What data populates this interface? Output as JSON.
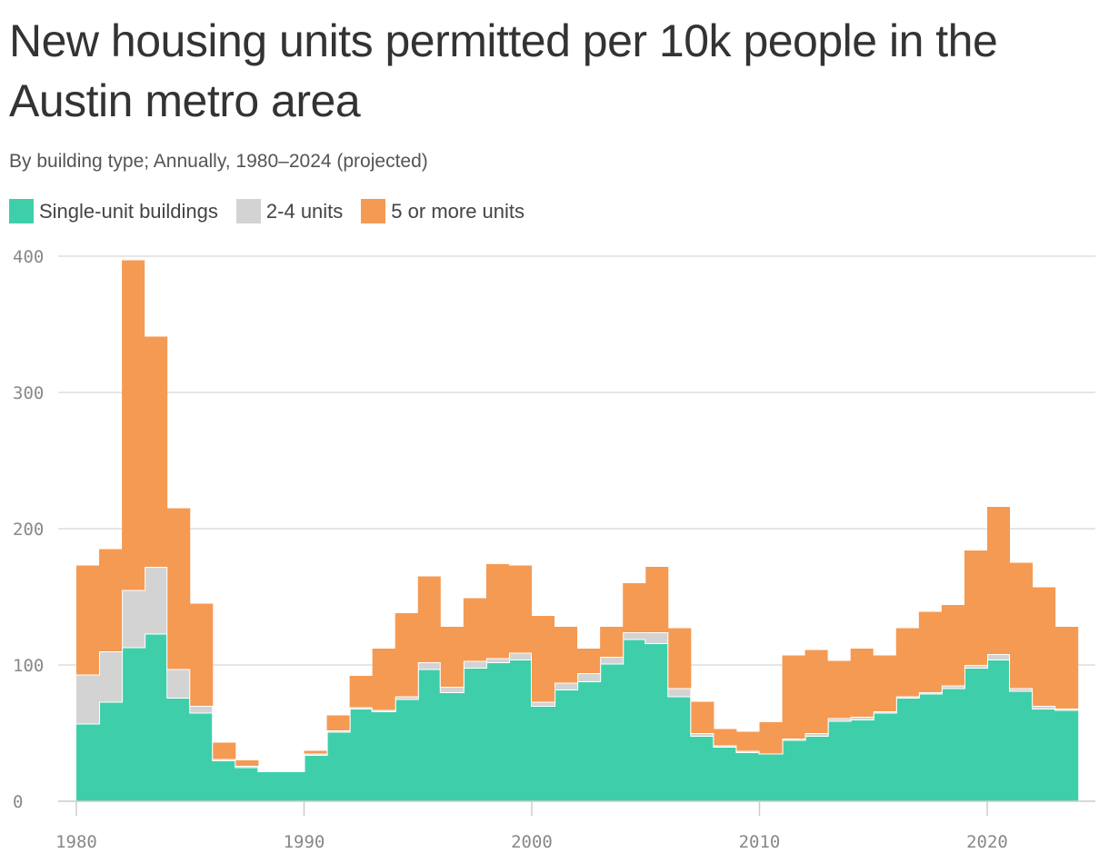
{
  "title": "New housing units permitted per 10k people in the Austin metro area",
  "subtitle": "By building type; Annually, 1980–2024 (projected)",
  "colors": {
    "single": "#3ecfaa",
    "two_four": "#d3d3d3",
    "five_plus": "#f59a53",
    "grid": "#dddddd",
    "axis": "#cccccc",
    "separator": "#ffffff"
  },
  "chart_data": {
    "type": "area",
    "stacked": true,
    "step": true,
    "title": "New housing units permitted per 10k people in the Austin metro area",
    "subtitle": "By building type; Annually, 1980–2024 (projected)",
    "xlabel": "",
    "ylabel": "",
    "ylim": [
      0,
      400
    ],
    "yticks": [
      0,
      100,
      200,
      300,
      400
    ],
    "xticks": [
      1980,
      1990,
      2000,
      2010,
      2020
    ],
    "grid": true,
    "legend_position": "top",
    "x": [
      1980,
      1981,
      1982,
      1983,
      1984,
      1985,
      1986,
      1987,
      1988,
      1989,
      1990,
      1991,
      1992,
      1993,
      1994,
      1995,
      1996,
      1997,
      1998,
      1999,
      2000,
      2001,
      2002,
      2003,
      2004,
      2005,
      2006,
      2007,
      2008,
      2009,
      2010,
      2011,
      2012,
      2013,
      2014,
      2015,
      2016,
      2017,
      2018,
      2019,
      2020,
      2021,
      2022,
      2023
    ],
    "series": [
      {
        "name": "Single-unit buildings",
        "color": "#3ecfaa",
        "values": [
          57,
          73,
          113,
          123,
          76,
          65,
          30,
          25,
          22,
          22,
          34,
          51,
          68,
          66,
          75,
          97,
          80,
          98,
          102,
          104,
          70,
          82,
          88,
          101,
          119,
          116,
          77,
          48,
          40,
          36,
          35,
          45,
          48,
          59,
          60,
          65,
          76,
          79,
          83,
          98,
          104,
          81,
          68,
          67
        ]
      },
      {
        "name": "2-4 units",
        "color": "#d3d3d3",
        "values": [
          36,
          37,
          42,
          49,
          21,
          5,
          1,
          1,
          0,
          0,
          1,
          1,
          1,
          1,
          2,
          5,
          4,
          5,
          3,
          5,
          3,
          5,
          6,
          5,
          5,
          8,
          6,
          2,
          1,
          1,
          0,
          1,
          2,
          2,
          2,
          1,
          1,
          1,
          2,
          2,
          4,
          2,
          2,
          1
        ]
      },
      {
        "name": "5 or more units",
        "color": "#f59a53",
        "values": [
          80,
          75,
          242,
          169,
          118,
          75,
          12,
          4,
          0,
          0,
          2,
          11,
          23,
          45,
          61,
          63,
          44,
          46,
          69,
          64,
          63,
          41,
          18,
          22,
          36,
          48,
          44,
          23,
          12,
          14,
          23,
          61,
          61,
          42,
          50,
          41,
          50,
          59,
          59,
          84,
          108,
          92,
          87,
          60
        ]
      }
    ]
  },
  "legend": [
    {
      "label": "Single-unit buildings",
      "color": "#3ecfaa"
    },
    {
      "label": "2-4 units",
      "color": "#d3d3d3"
    },
    {
      "label": "5 or more units",
      "color": "#f59a53"
    }
  ]
}
